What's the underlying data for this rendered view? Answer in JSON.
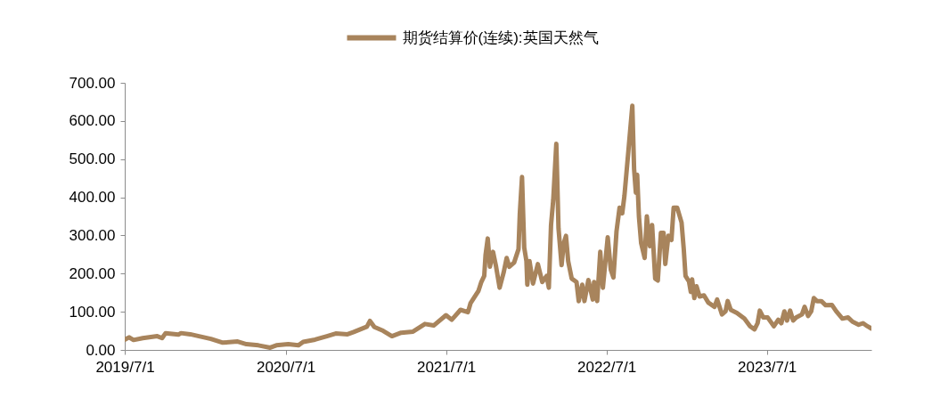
{
  "chart_data": {
    "type": "line",
    "x": [
      "2019-07-01",
      "2019-07-11",
      "2019-07-21",
      "2019-08-11",
      "2019-09-13",
      "2019-09-24",
      "2019-10-02",
      "2019-10-31",
      "2019-11-06",
      "2019-11-27",
      "2019-12-17",
      "2020-01-13",
      "2020-02-09",
      "2020-03-14",
      "2020-04-03",
      "2020-04-30",
      "2020-05-27",
      "2020-06-10",
      "2020-07-07",
      "2020-07-30",
      "2020-08-10",
      "2020-09-06",
      "2020-10-03",
      "2020-10-23",
      "2020-11-19",
      "2020-12-03",
      "2021-01-02",
      "2021-01-09",
      "2021-01-19",
      "2021-02-08",
      "2021-02-28",
      "2021-03-21",
      "2021-04-17",
      "2021-05-14",
      "2021-06-03",
      "2021-07-01",
      "2021-07-14",
      "2021-08-03",
      "2021-08-20",
      "2021-08-26",
      "2021-09-13",
      "2021-09-19",
      "2021-09-26",
      "2021-09-29",
      "2021-10-04",
      "2021-10-09",
      "2021-10-16",
      "2021-10-23",
      "2021-10-31",
      "2021-11-09",
      "2021-11-16",
      "2021-11-22",
      "2021-12-03",
      "2021-12-13",
      "2021-12-16",
      "2021-12-21",
      "2021-12-26",
      "2021-12-31",
      "2022-01-02",
      "2022-01-07",
      "2022-01-15",
      "2022-01-26",
      "2022-02-05",
      "2022-02-15",
      "2022-02-20",
      "2022-02-25",
      "2022-03-02",
      "2022-03-09",
      "2022-03-14",
      "2022-03-21",
      "2022-03-26",
      "2022-03-31",
      "2022-04-05",
      "2022-04-13",
      "2022-04-24",
      "2022-04-29",
      "2022-05-07",
      "2022-05-12",
      "2022-05-21",
      "2022-05-31",
      "2022-06-03",
      "2022-06-10",
      "2022-06-17",
      "2022-06-23",
      "2022-07-04",
      "2022-07-11",
      "2022-07-17",
      "2022-07-24",
      "2022-07-31",
      "2022-08-06",
      "2022-08-11",
      "2022-08-20",
      "2022-08-29",
      "2022-09-02",
      "2022-09-06",
      "2022-09-09",
      "2022-09-13",
      "2022-09-18",
      "2022-09-26",
      "2022-10-01",
      "2022-10-08",
      "2022-10-13",
      "2022-10-20",
      "2022-10-26",
      "2022-11-02",
      "2022-11-08",
      "2022-11-12",
      "2022-11-19",
      "2022-11-26",
      "2022-12-01",
      "2022-12-09",
      "2022-12-19",
      "2022-12-24",
      "2022-12-28",
      "2023-01-05",
      "2023-01-09",
      "2023-01-12",
      "2023-01-17",
      "2023-01-22",
      "2023-01-29",
      "2023-02-08",
      "2023-02-18",
      "2023-03-04",
      "2023-03-10",
      "2023-03-21",
      "2023-03-29",
      "2023-04-03",
      "2023-04-10",
      "2023-04-24",
      "2023-05-11",
      "2023-05-24",
      "2023-06-03",
      "2023-06-10",
      "2023-06-15",
      "2023-06-23",
      "2023-07-03",
      "2023-07-17",
      "2023-07-27",
      "2023-08-03",
      "2023-08-10",
      "2023-08-16",
      "2023-08-23",
      "2023-08-30",
      "2023-09-06",
      "2023-09-19",
      "2023-09-25",
      "2023-10-03",
      "2023-10-10",
      "2023-10-16",
      "2023-10-23",
      "2023-11-02",
      "2023-11-12",
      "2023-11-26",
      "2023-12-06",
      "2023-12-20",
      "2024-01-02",
      "2024-01-12",
      "2024-01-26",
      "2024-02-05",
      "2024-02-15",
      "2024-02-24"
    ],
    "series": [
      {
        "name": "期货结算价(连续):英国天然气",
        "color": "#a8845c",
        "values": [
          27,
          33,
          26,
          31,
          36,
          31,
          44,
          40,
          44,
          41,
          36,
          29,
          19,
          22,
          15,
          12,
          6,
          12,
          15,
          12,
          21,
          27,
          36,
          43,
          41,
          47,
          61,
          76,
          60,
          50,
          36,
          45,
          48,
          68,
          64,
          91,
          79,
          105,
          99,
          123,
          155,
          177,
          194,
          249,
          292,
          218,
          257,
          218,
          163,
          202,
          241,
          218,
          229,
          264,
          358,
          453,
          268,
          233,
          171,
          233,
          174,
          225,
          178,
          194,
          163,
          327,
          393,
          540,
          319,
          222,
          280,
          299,
          233,
          187,
          178,
          128,
          171,
          128,
          183,
          132,
          178,
          128,
          257,
          163,
          295,
          210,
          190,
          311,
          373,
          358,
          404,
          521,
          640,
          474,
          412,
          459,
          350,
          280,
          241,
          350,
          272,
          327,
          187,
          182,
          307,
          307,
          225,
          299,
          288,
          373,
          373,
          334,
          264,
          194,
          179,
          152,
          185,
          136,
          167,
          140,
          143,
          124,
          113,
          132,
          93,
          101,
          128,
          105,
          97,
          82,
          62,
          54,
          70,
          103,
          85,
          85,
          62,
          79,
          70,
          101,
          77,
          103,
          77,
          85,
          93,
          113,
          89,
          101,
          136,
          128,
          128,
          117,
          118,
          101,
          82,
          85,
          74,
          66,
          70,
          62,
          56
        ]
      }
    ],
    "xlim": [
      "2019-07-01",
      "2024-02-24"
    ],
    "xticks": [
      {
        "value": "2019-07-01",
        "label": "2019/7/1"
      },
      {
        "value": "2020-07-01",
        "label": "2020/7/1"
      },
      {
        "value": "2021-07-01",
        "label": "2021/7/1"
      },
      {
        "value": "2022-07-01",
        "label": "2022/7/1"
      },
      {
        "value": "2023-07-01",
        "label": "2023/7/1"
      }
    ],
    "ylim": [
      0,
      700
    ],
    "yticks": [
      {
        "value": 0,
        "label": "0.00"
      },
      {
        "value": 100,
        "label": "100.00"
      },
      {
        "value": 200,
        "label": "200.00"
      },
      {
        "value": 300,
        "label": "300.00"
      },
      {
        "value": 400,
        "label": "400.00"
      },
      {
        "value": 500,
        "label": "500.00"
      },
      {
        "value": 600,
        "label": "600.00"
      },
      {
        "value": 700,
        "label": "700.00"
      }
    ],
    "grid": false,
    "legend": "top",
    "marker": "none",
    "line_style": "solid"
  }
}
